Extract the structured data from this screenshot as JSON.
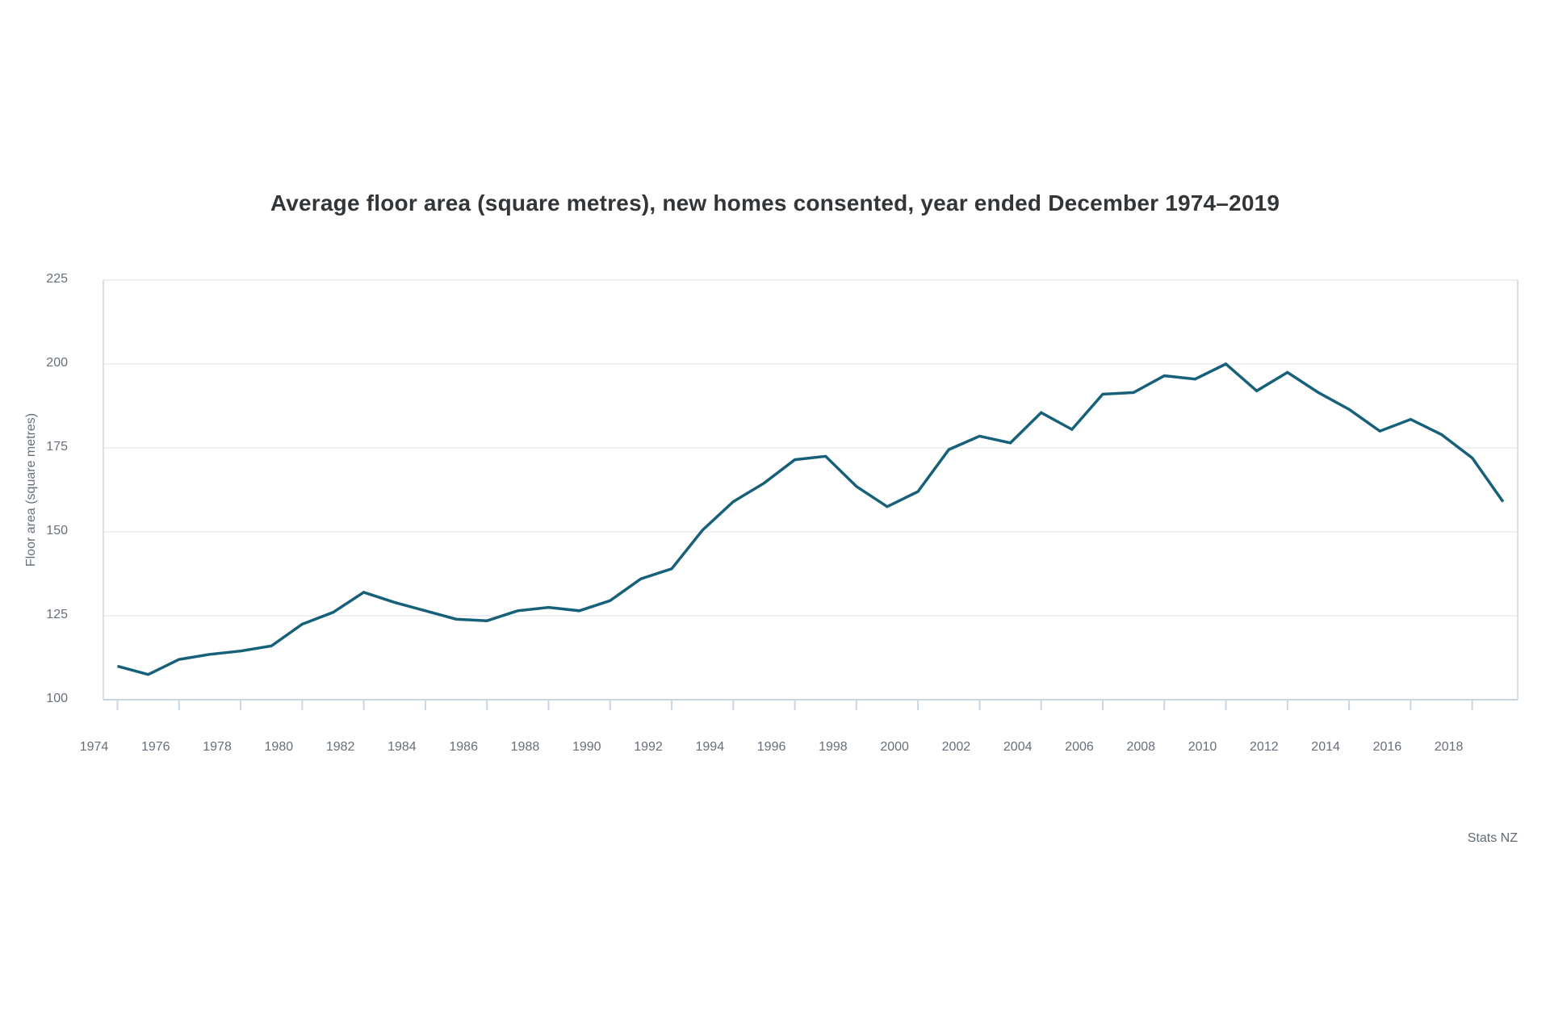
{
  "title": "Average floor area (square metres), new homes consented, year ended December 1974–2019",
  "source": "Stats NZ",
  "y_axis": {
    "label": "Floor area (square metres)",
    "ticks": [
      225,
      200,
      175,
      150,
      125,
      100
    ]
  },
  "x_axis": {
    "tick_years": [
      1974,
      1976,
      1978,
      1980,
      1982,
      1984,
      1986,
      1988,
      1990,
      1992,
      1994,
      1996,
      1998,
      2000,
      2002,
      2004,
      2006,
      2008,
      2010,
      2012,
      2014,
      2016,
      2018
    ]
  },
  "colors": {
    "line": "#17607a",
    "grid": "#e9eaeb",
    "axis": "#c9d6e2",
    "tick": "#c9d6e2",
    "label_text": "#676f79",
    "title_text": "#333639",
    "source_text": "#5f6a74"
  },
  "chart_data": {
    "type": "line",
    "title": "Average floor area (square metres), new homes consented, year ended December 1974–2019",
    "xlabel": "",
    "ylabel": "Floor area (square metres)",
    "ylim": [
      100,
      225
    ],
    "xlim": [
      1974,
      2019
    ],
    "grid": "horizontal",
    "legend": "none",
    "series": [
      {
        "name": "Average floor area (square metres)",
        "x": [
          1974,
          1975,
          1976,
          1977,
          1978,
          1979,
          1980,
          1981,
          1982,
          1983,
          1984,
          1985,
          1986,
          1987,
          1988,
          1989,
          1990,
          1991,
          1992,
          1993,
          1994,
          1995,
          1996,
          1997,
          1998,
          1999,
          2000,
          2001,
          2002,
          2003,
          2004,
          2005,
          2006,
          2007,
          2008,
          2009,
          2010,
          2011,
          2012,
          2013,
          2014,
          2015,
          2016,
          2017,
          2018,
          2019
        ],
        "values": [
          110,
          107.5,
          112,
          113.5,
          114.5,
          116,
          122.5,
          126,
          132,
          129,
          126.5,
          124,
          123.5,
          126.5,
          127.5,
          126.5,
          129.5,
          136,
          139,
          150.5,
          159,
          164.5,
          171.5,
          172.5,
          163.5,
          157.5,
          162,
          174.5,
          178.5,
          176.5,
          185.5,
          180.5,
          191,
          191.5,
          196.5,
          195.5,
          200,
          192,
          197.5,
          191.5,
          186.5,
          180,
          183.5,
          179,
          172,
          159
        ]
      }
    ]
  }
}
